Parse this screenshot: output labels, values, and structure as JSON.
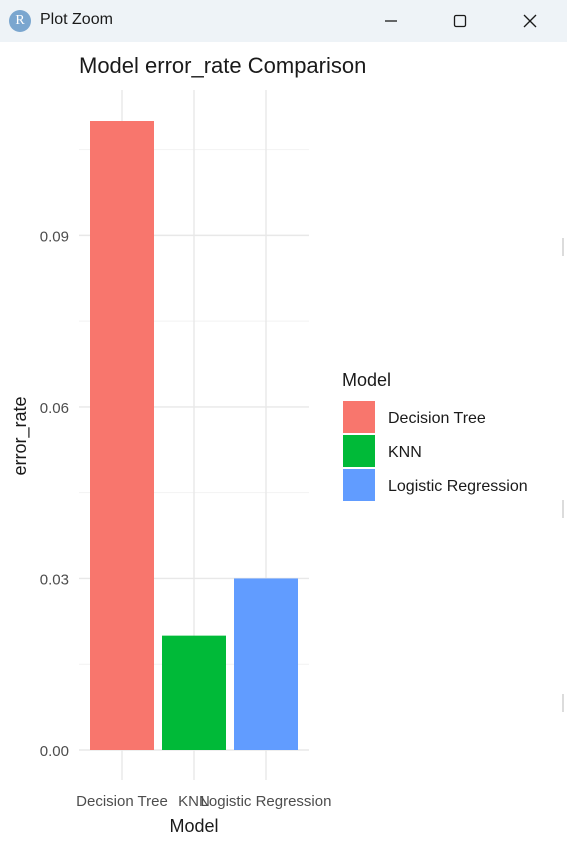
{
  "window": {
    "title": "Plot Zoom",
    "app_icon": "R",
    "controls": [
      "minimize-icon",
      "maximize-icon",
      "close-icon"
    ]
  },
  "chart_data": {
    "type": "bar",
    "title": "Model error_rate Comparison",
    "xlabel": "Model",
    "ylabel": "error_rate",
    "categories": [
      "Decision Tree",
      "KNN",
      "Logistic Regression"
    ],
    "values": [
      0.11,
      0.02,
      0.03
    ],
    "colors": [
      "#F8766D",
      "#00BA38",
      "#619CFF"
    ],
    "ylim": [
      0,
      0.11
    ],
    "yticks": [
      0.0,
      0.03,
      0.06,
      0.09
    ],
    "ytick_labels": [
      "0.00",
      "0.03",
      "0.06",
      "0.09"
    ],
    "grid": true,
    "legend": {
      "title": "Model",
      "entries": [
        "Decision Tree",
        "KNN",
        "Logistic Regression"
      ],
      "placement": "right"
    }
  }
}
